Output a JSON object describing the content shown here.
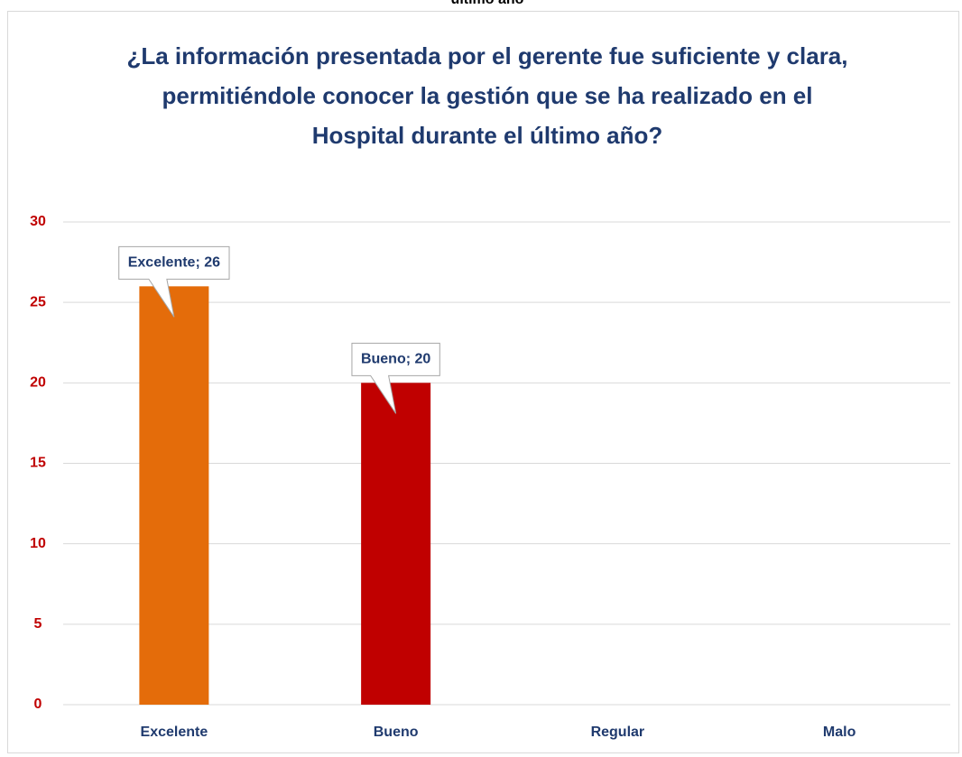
{
  "chart_data": {
    "type": "bar",
    "header_fragment": "último año",
    "title": "¿La información presentada por el gerente fue suficiente y clara, permitiéndole conocer la gestión que se ha realizado en el Hospital durante el último año?",
    "categories": [
      "Excelente",
      "Bueno",
      "Regular",
      "Malo"
    ],
    "values": [
      26,
      20,
      0,
      0
    ],
    "value_labels": [
      "Excelente; 26",
      "Bueno; 20",
      null,
      null
    ],
    "colors": [
      "#e46c0a",
      "#c00000",
      "#c00000",
      "#c00000"
    ],
    "ylim": [
      0,
      30
    ],
    "yticks": [
      0,
      5,
      10,
      15,
      20,
      25,
      30
    ],
    "grid": true
  }
}
